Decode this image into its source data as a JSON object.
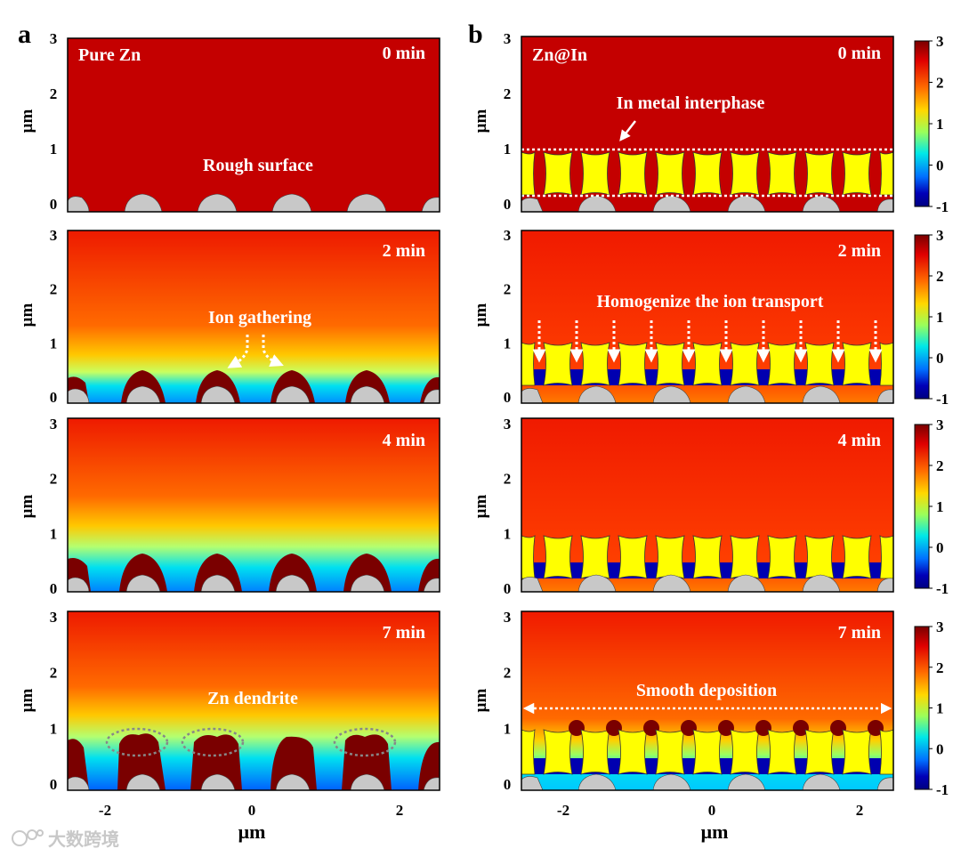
{
  "figure": {
    "panel_a_label": "a",
    "panel_b_label": "b",
    "axis_unit": "μm",
    "y_ticks": [
      "0",
      "1",
      "2",
      "3"
    ],
    "x_ticks": [
      "-2",
      "0",
      "2"
    ],
    "colorbar_ticks": [
      "3",
      "2",
      "1",
      "0",
      "-1"
    ],
    "colorbar_colors": [
      "#7a0000",
      "#e00000",
      "#ff6a00",
      "#ffd800",
      "#9bff5a",
      "#00e8e8",
      "#0070ff",
      "#0000b8",
      "#000080"
    ],
    "watermark": "大数跨境"
  },
  "panel_a": {
    "title": "Pure Zn",
    "times": [
      "0 min",
      "2 min",
      "4 min",
      "7 min"
    ],
    "annotations": {
      "rough_surface": "Rough surface",
      "ion_gathering": "Ion gathering",
      "zn_dendrite": "Zn dendrite"
    }
  },
  "panel_b": {
    "title": "Zn@In",
    "times": [
      "0 min",
      "2 min",
      "4 min",
      "7 min"
    ],
    "annotations": {
      "interphase": "In metal interphase",
      "homogenize": "Homogenize the ion transport",
      "smooth": "Smooth deposition"
    }
  },
  "colors": {
    "electrolyte_top": "#c80000",
    "indium": "#ffff00",
    "substrate": "#c8c8c8",
    "zn_deposit": "#7a0000",
    "depleted": "#0000b0"
  }
}
